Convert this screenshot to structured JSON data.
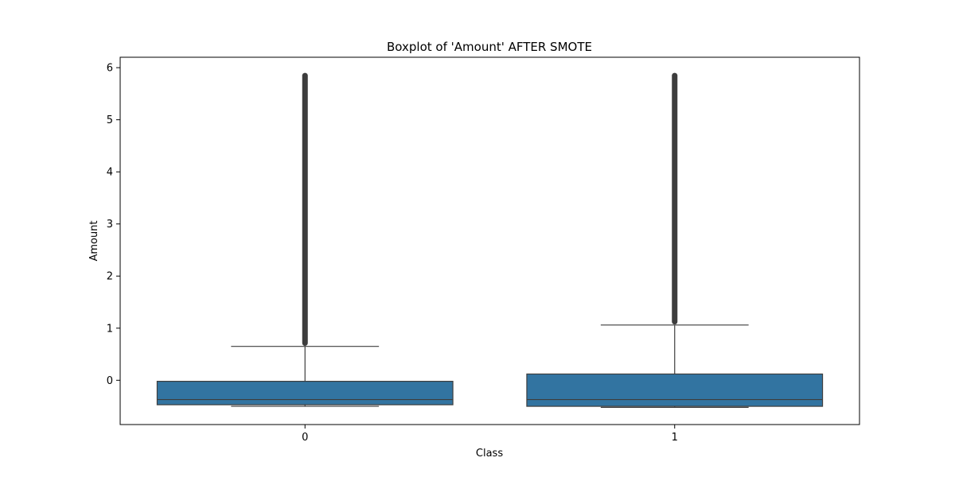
{
  "chart_data": {
    "type": "boxplot",
    "title": "Boxplot of 'Amount' AFTER SMOTE",
    "xlabel": "Class",
    "ylabel": "Amount",
    "ylim": [
      -0.85,
      6.2
    ],
    "yticks": [
      0,
      1,
      2,
      3,
      4,
      5,
      6
    ],
    "grid": false,
    "colors": {
      "box_fill": "#3274a1",
      "line": "#3d3d3d",
      "outlier": "#3d3d3d"
    },
    "categories": [
      "0",
      "1"
    ],
    "boxes": [
      {
        "category": "0",
        "whisker_low": -0.5,
        "q1": -0.47,
        "median": -0.37,
        "q3": -0.02,
        "whisker_high": 0.65,
        "outliers_range": [
          0.66,
          5.9
        ]
      },
      {
        "category": "1",
        "whisker_low": -0.52,
        "q1": -0.5,
        "median": -0.37,
        "q3": 0.12,
        "whisker_high": 1.06,
        "outliers_range": [
          1.07,
          5.9
        ]
      }
    ]
  }
}
